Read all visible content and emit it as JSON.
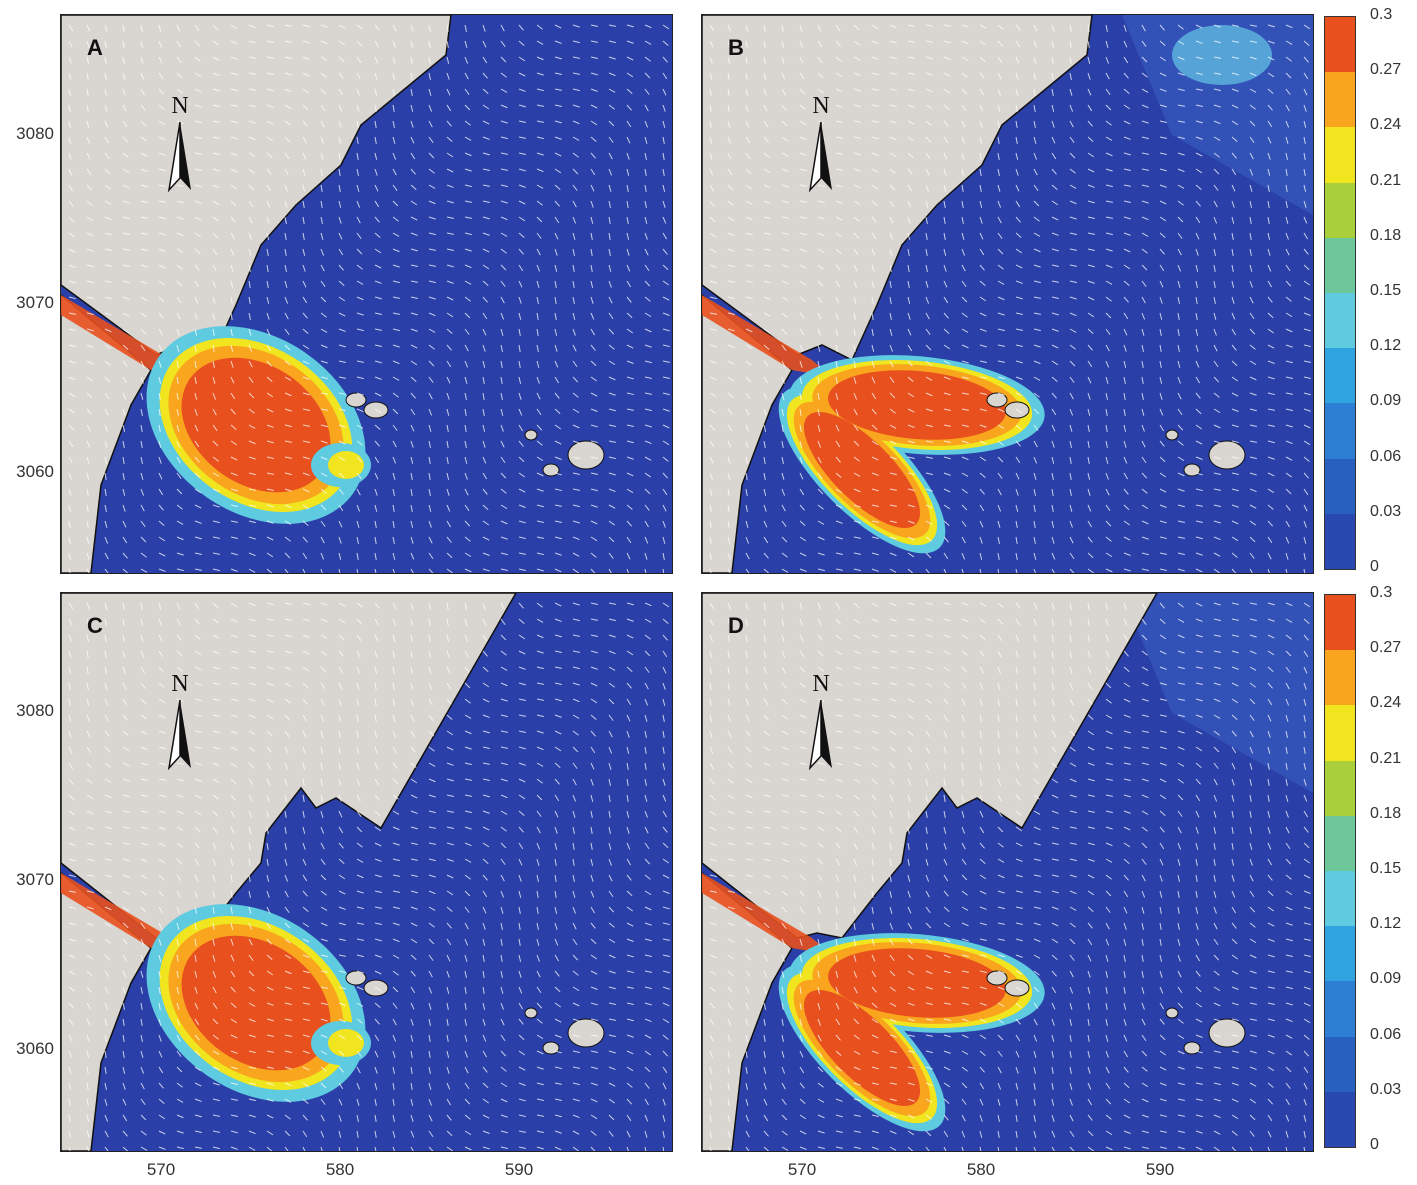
{
  "panels": [
    {
      "id": "A",
      "label": "A"
    },
    {
      "id": "B",
      "label": "B"
    },
    {
      "id": "C",
      "label": "C"
    },
    {
      "id": "D",
      "label": "D"
    }
  ],
  "north_label": "N",
  "y_ticks": [
    "3080",
    "3070",
    "3060"
  ],
  "x_ticks": [
    "570",
    "580",
    "590"
  ],
  "colorbar": {
    "ticks": [
      "0.3",
      "0.27",
      "0.24",
      "0.21",
      "0.18",
      "0.15",
      "0.12",
      "0.09",
      "0.06",
      "0.03",
      "0"
    ],
    "colors": [
      "#e8501e",
      "#f9a51d",
      "#f0e51e",
      "#a9cf3a",
      "#6ec79a",
      "#5fcbe0",
      "#2fa4e1",
      "#2c7fd2",
      "#2860bf",
      "#2a49b0"
    ]
  },
  "colors": {
    "land": "#d9d5d0",
    "water_low": "#2a3fa8"
  }
}
